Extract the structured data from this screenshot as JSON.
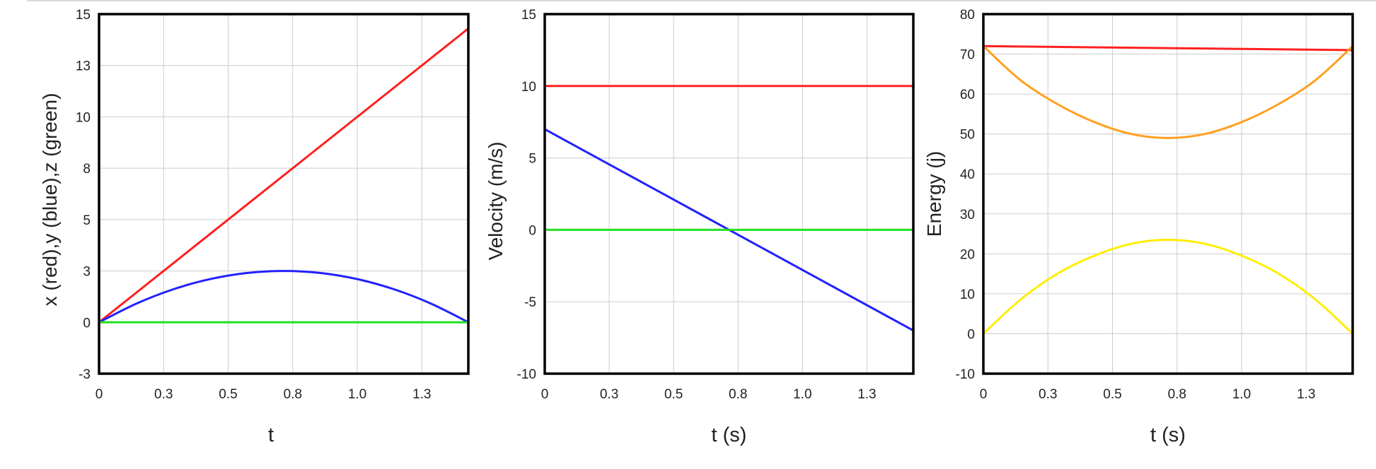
{
  "chart_data": [
    {
      "type": "line",
      "title": "",
      "xlabel": "t",
      "ylabel": "x (red),y (blue),z (green)",
      "xlim": [
        0,
        1.43
      ],
      "ylim": [
        -2.5,
        15
      ],
      "xticks": [
        0,
        0.25,
        0.5,
        0.75,
        1.0,
        1.25
      ],
      "xtick_labels": [
        "0",
        "0.3",
        "0.5",
        "0.8",
        "1.0",
        "1.3"
      ],
      "yticks": [
        -2.5,
        0,
        2.5,
        5,
        7.5,
        10,
        12.5,
        15
      ],
      "ytick_labels": [
        "-3",
        "0",
        "3",
        "5",
        "8",
        "10",
        "13",
        "15"
      ],
      "grid": true,
      "series": [
        {
          "color": "#ff2020",
          "x": [
            0,
            1.43
          ],
          "y": [
            0,
            14.3
          ]
        },
        {
          "color": "#2020ff",
          "x": [
            0,
            0.143,
            0.286,
            0.429,
            0.572,
            0.715,
            0.858,
            1.001,
            1.144,
            1.287,
            1.43
          ],
          "y": [
            0,
            0.9,
            1.6,
            2.1,
            2.4,
            2.5,
            2.4,
            2.1,
            1.6,
            0.9,
            0
          ]
        },
        {
          "color": "#20e020",
          "x": [
            0,
            1.43
          ],
          "y": [
            0,
            0
          ]
        }
      ]
    },
    {
      "type": "line",
      "title": "",
      "xlabel": "t (s)",
      "ylabel": "Velocity (m/s)",
      "xlim": [
        0,
        1.43
      ],
      "ylim": [
        -10,
        15
      ],
      "xticks": [
        0,
        0.25,
        0.5,
        0.75,
        1.0,
        1.25
      ],
      "xtick_labels": [
        "0",
        "0.3",
        "0.5",
        "0.8",
        "1.0",
        "1.3"
      ],
      "yticks": [
        -10,
        -5,
        0,
        5,
        10,
        15
      ],
      "ytick_labels": [
        "-10",
        "-5",
        "0",
        "5",
        "10",
        "15"
      ],
      "grid": true,
      "series": [
        {
          "color": "#ff2020",
          "x": [
            0,
            1.43
          ],
          "y": [
            10,
            10
          ]
        },
        {
          "color": "#2020ff",
          "x": [
            0,
            1.43
          ],
          "y": [
            7,
            -7
          ]
        },
        {
          "color": "#20e020",
          "x": [
            0,
            1.43
          ],
          "y": [
            0,
            0
          ]
        }
      ]
    },
    {
      "type": "line",
      "title": "",
      "xlabel": "t (s)",
      "ylabel": "Energy (j)",
      "xlim": [
        0,
        1.43
      ],
      "ylim": [
        -10,
        80
      ],
      "xticks": [
        0,
        0.25,
        0.5,
        0.75,
        1.0,
        1.25
      ],
      "xtick_labels": [
        "0",
        "0.3",
        "0.5",
        "0.8",
        "1.0",
        "1.3"
      ],
      "yticks": [
        -10,
        0,
        10,
        20,
        30,
        40,
        50,
        60,
        70,
        80
      ],
      "ytick_labels": [
        "-10",
        "0",
        "10",
        "20",
        "30",
        "40",
        "50",
        "60",
        "70",
        "80"
      ],
      "grid": true,
      "series": [
        {
          "color": "#ff2020",
          "x": [
            0,
            1.43
          ],
          "y": [
            72,
            71
          ]
        },
        {
          "color": "#ffa020",
          "x": [
            0,
            0.143,
            0.286,
            0.429,
            0.572,
            0.715,
            0.858,
            1.001,
            1.144,
            1.287,
            1.43
          ],
          "y": [
            72,
            63.5,
            57.5,
            53,
            50,
            49,
            50,
            53,
            57.5,
            63.5,
            72
          ]
        },
        {
          "color": "#ffee00",
          "x": [
            0,
            0.143,
            0.286,
            0.429,
            0.572,
            0.715,
            0.858,
            1.001,
            1.144,
            1.287,
            1.43
          ],
          "y": [
            0,
            8.5,
            15,
            19.5,
            22.5,
            23.5,
            22.5,
            19.5,
            15,
            8.5,
            0
          ]
        }
      ]
    }
  ]
}
